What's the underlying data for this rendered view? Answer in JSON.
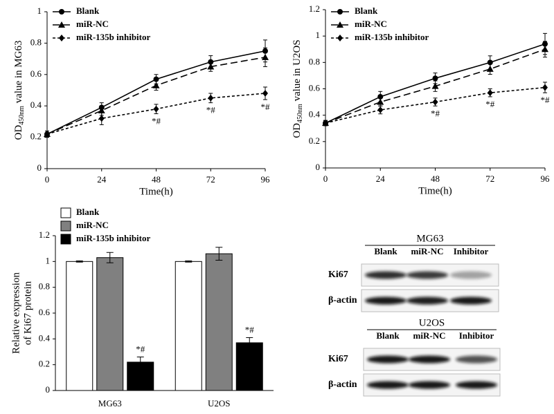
{
  "chart_data": [
    {
      "type": "line",
      "ylabel": [
        "OD",
        "450nm",
        " value in MG63"
      ],
      "xlabel": "Time(h)",
      "x": [
        0,
        24,
        48,
        72,
        96
      ],
      "xlim": [
        0,
        96
      ],
      "xticks": [
        0,
        24,
        48,
        72,
        96
      ],
      "ylim": [
        0,
        1
      ],
      "yticks": [
        0,
        0.2,
        0.4,
        0.6,
        0.8,
        1
      ],
      "legend": "upper left",
      "series": [
        {
          "name": "Blank",
          "color": "#000000",
          "style": "solid",
          "marker": "circle",
          "values": [
            0.22,
            0.39,
            0.57,
            0.68,
            0.75
          ],
          "errors": [
            0.02,
            0.03,
            0.03,
            0.04,
            0.07
          ]
        },
        {
          "name": "miR-NC",
          "color": "#000000",
          "style": "dashed",
          "marker": "triangle",
          "values": [
            0.22,
            0.37,
            0.53,
            0.65,
            0.71
          ],
          "errors": [
            0.02,
            0.03,
            0.03,
            0.03,
            0.06
          ]
        },
        {
          "name": "miR-135b inhibitor",
          "color": "#000000",
          "style": "dotted",
          "marker": "diamond",
          "values": [
            0.22,
            0.32,
            0.38,
            0.45,
            0.48
          ],
          "errors": [
            0.02,
            0.04,
            0.03,
            0.03,
            0.04
          ],
          "significance": [
            null,
            null,
            "*#",
            "*#",
            "*#"
          ]
        }
      ]
    },
    {
      "type": "line",
      "ylabel": [
        "OD",
        "450nm",
        " value in U2OS"
      ],
      "xlabel": "Time(h)",
      "x": [
        0,
        24,
        48,
        72,
        96
      ],
      "xlim": [
        0,
        96
      ],
      "xticks": [
        0,
        24,
        48,
        72,
        96
      ],
      "ylim": [
        0,
        1.2
      ],
      "yticks": [
        0,
        0.2,
        0.4,
        0.6,
        0.8,
        1,
        1.2
      ],
      "legend": "upper left",
      "series": [
        {
          "name": "Blank",
          "color": "#000000",
          "style": "solid",
          "marker": "circle",
          "values": [
            0.34,
            0.54,
            0.68,
            0.8,
            0.94
          ],
          "errors": [
            0.02,
            0.04,
            0.04,
            0.05,
            0.08
          ]
        },
        {
          "name": "miR-NC",
          "color": "#000000",
          "style": "dashed",
          "marker": "triangle",
          "values": [
            0.34,
            0.5,
            0.62,
            0.75,
            0.9
          ],
          "errors": [
            0.02,
            0.03,
            0.04,
            0.04,
            0.06
          ]
        },
        {
          "name": "miR-135b inhibitor",
          "color": "#000000",
          "style": "dotted",
          "marker": "diamond",
          "values": [
            0.34,
            0.44,
            0.5,
            0.57,
            0.61
          ],
          "errors": [
            0.02,
            0.03,
            0.03,
            0.03,
            0.04
          ],
          "significance": [
            null,
            null,
            "*#",
            "*#",
            "*#"
          ]
        }
      ]
    },
    {
      "type": "bar",
      "ylabel": [
        "Relative expression",
        "of Ki67 protein"
      ],
      "categories": [
        "MG63",
        "U2OS"
      ],
      "ylim": [
        0,
        1.2
      ],
      "yticks": [
        0,
        0.2,
        0.4,
        0.6,
        0.8,
        1,
        1.2
      ],
      "legend": "upper left",
      "series": [
        {
          "name": "Blank",
          "color": "#ffffff",
          "values": [
            1.0,
            1.0
          ],
          "errors": [
            0.005,
            0.005
          ]
        },
        {
          "name": "miR-NC",
          "color": "#808080",
          "values": [
            1.03,
            1.06
          ],
          "errors": [
            0.04,
            0.05
          ]
        },
        {
          "name": "miR-135b inhibitor",
          "color": "#000000",
          "values": [
            0.22,
            0.37
          ],
          "errors": [
            0.04,
            0.04
          ],
          "significance": [
            "*#",
            "*#"
          ]
        }
      ]
    }
  ],
  "blots": [
    {
      "title": "MG63",
      "lanes": [
        "Blank",
        "miR-NC",
        "Inhibitor"
      ],
      "rows": [
        "Ki67",
        "β-actin"
      ]
    },
    {
      "title": "U2OS",
      "lanes": [
        "Blank",
        "miR-NC",
        "Inhibitor"
      ],
      "rows": [
        "Ki67",
        "β-actin"
      ]
    }
  ]
}
